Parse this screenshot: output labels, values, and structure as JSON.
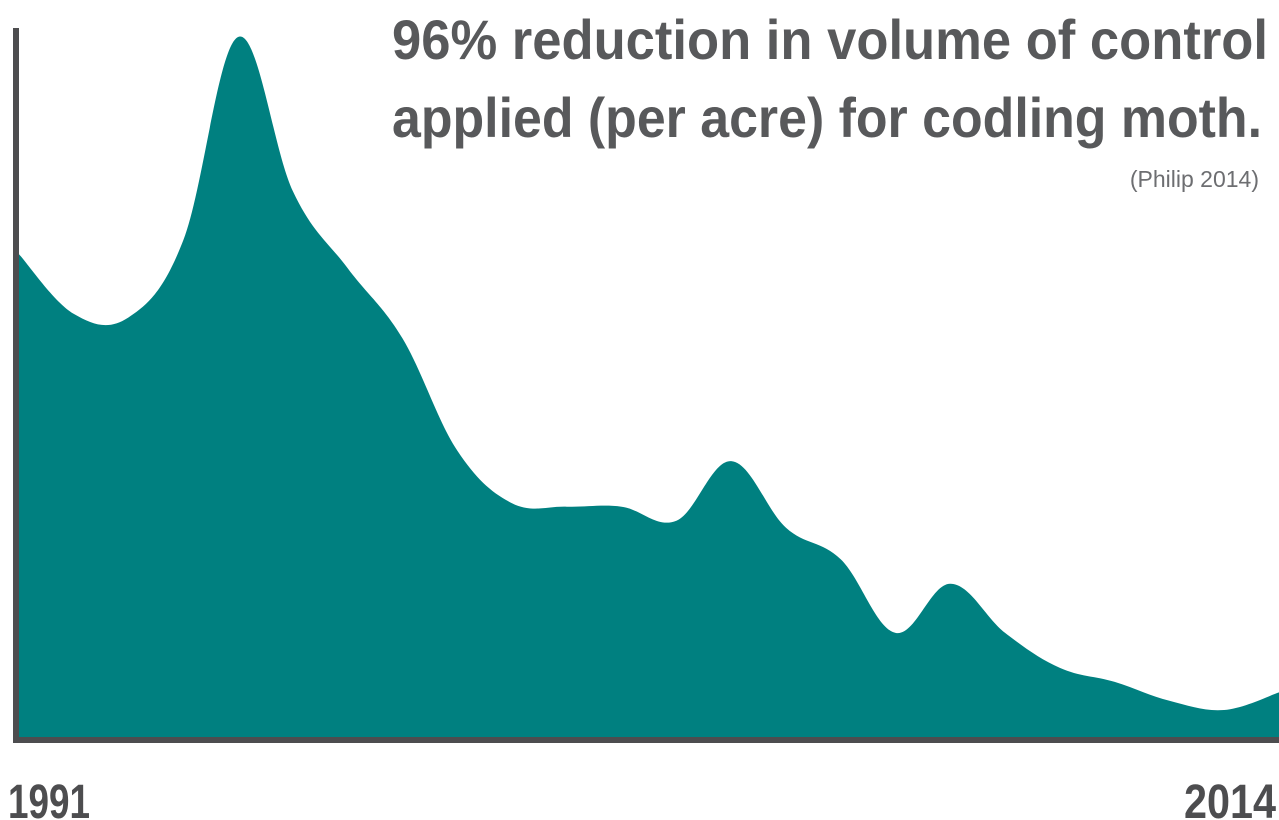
{
  "chart_data": {
    "type": "area",
    "title_lines": [
      "96% reduction in volume of control",
      "applied (per acre) for codling moth."
    ],
    "citation": "(Philip 2014)",
    "x_start_label": "1991",
    "x_end_label": "2014",
    "x_range": [
      1991,
      2014
    ],
    "y_range": [
      0,
      100
    ],
    "y_axis_labels": false,
    "grid": false,
    "legend": "none",
    "x": [
      1991,
      1992,
      1993,
      1994,
      1995,
      1996,
      1997,
      1998,
      1999,
      2000,
      2001,
      2002,
      2003,
      2004,
      2005,
      2006,
      2007,
      2008,
      2009,
      2010,
      2011,
      2012,
      2013,
      2014
    ],
    "values": [
      69,
      60.5,
      60,
      71,
      100,
      78,
      67,
      57,
      41,
      33.5,
      33,
      33,
      31,
      39.5,
      30,
      25.5,
      15,
      22,
      15,
      10,
      8,
      5.3,
      4,
      6.5
    ],
    "colors": {
      "area": "#008080",
      "axis": "#4d4d4f",
      "title": "#58595b"
    }
  }
}
